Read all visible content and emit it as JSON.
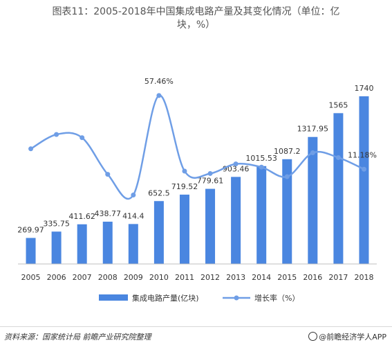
{
  "title_lines": [
    "图表11：2005-2018年中国集成电路产量及其变化情况（单位：亿",
    "块，%）"
  ],
  "footer": {
    "source": "资料来源：国家统计局 前瞻产业研究院整理",
    "brand": "@前瞻经济学人APP"
  },
  "colors": {
    "bar": "#4a86e0",
    "line": "#6f9ee6",
    "axis": "#bfbfbf",
    "text": "#333333"
  },
  "chart_data": {
    "type": "bar",
    "categories": [
      "2005",
      "2006",
      "2007",
      "2008",
      "2009",
      "2010",
      "2011",
      "2012",
      "2013",
      "2014",
      "2015",
      "2016",
      "2017",
      "2018"
    ],
    "series": [
      {
        "name": "集成电路产量(亿块)",
        "type": "bar",
        "values": [
          269.97,
          335.75,
          411.62,
          438.77,
          414.4,
          652.5,
          719.52,
          779.61,
          903.46,
          1015.53,
          1087.2,
          1317.95,
          1565,
          1740
        ],
        "labels": [
          "269.97",
          "335.75",
          "411.62",
          "438.77",
          "414.4",
          "652.5",
          "719.52",
          "779.61",
          "903.46",
          "1015.53",
          "1087.2",
          "1317.95",
          "1565",
          "1740"
        ]
      },
      {
        "name": "增长率（%）",
        "type": "line",
        "smooth": true,
        "values": [
          24.0,
          33.0,
          31.0,
          8.0,
          -5.0,
          57.46,
          10.0,
          8.5,
          14.5,
          12.5,
          6.5,
          21.5,
          18.5,
          11.18
        ],
        "labels": {
          "5": "57.46%",
          "13": "11.18%"
        }
      }
    ],
    "legend_position": "bottom",
    "grid": false
  }
}
